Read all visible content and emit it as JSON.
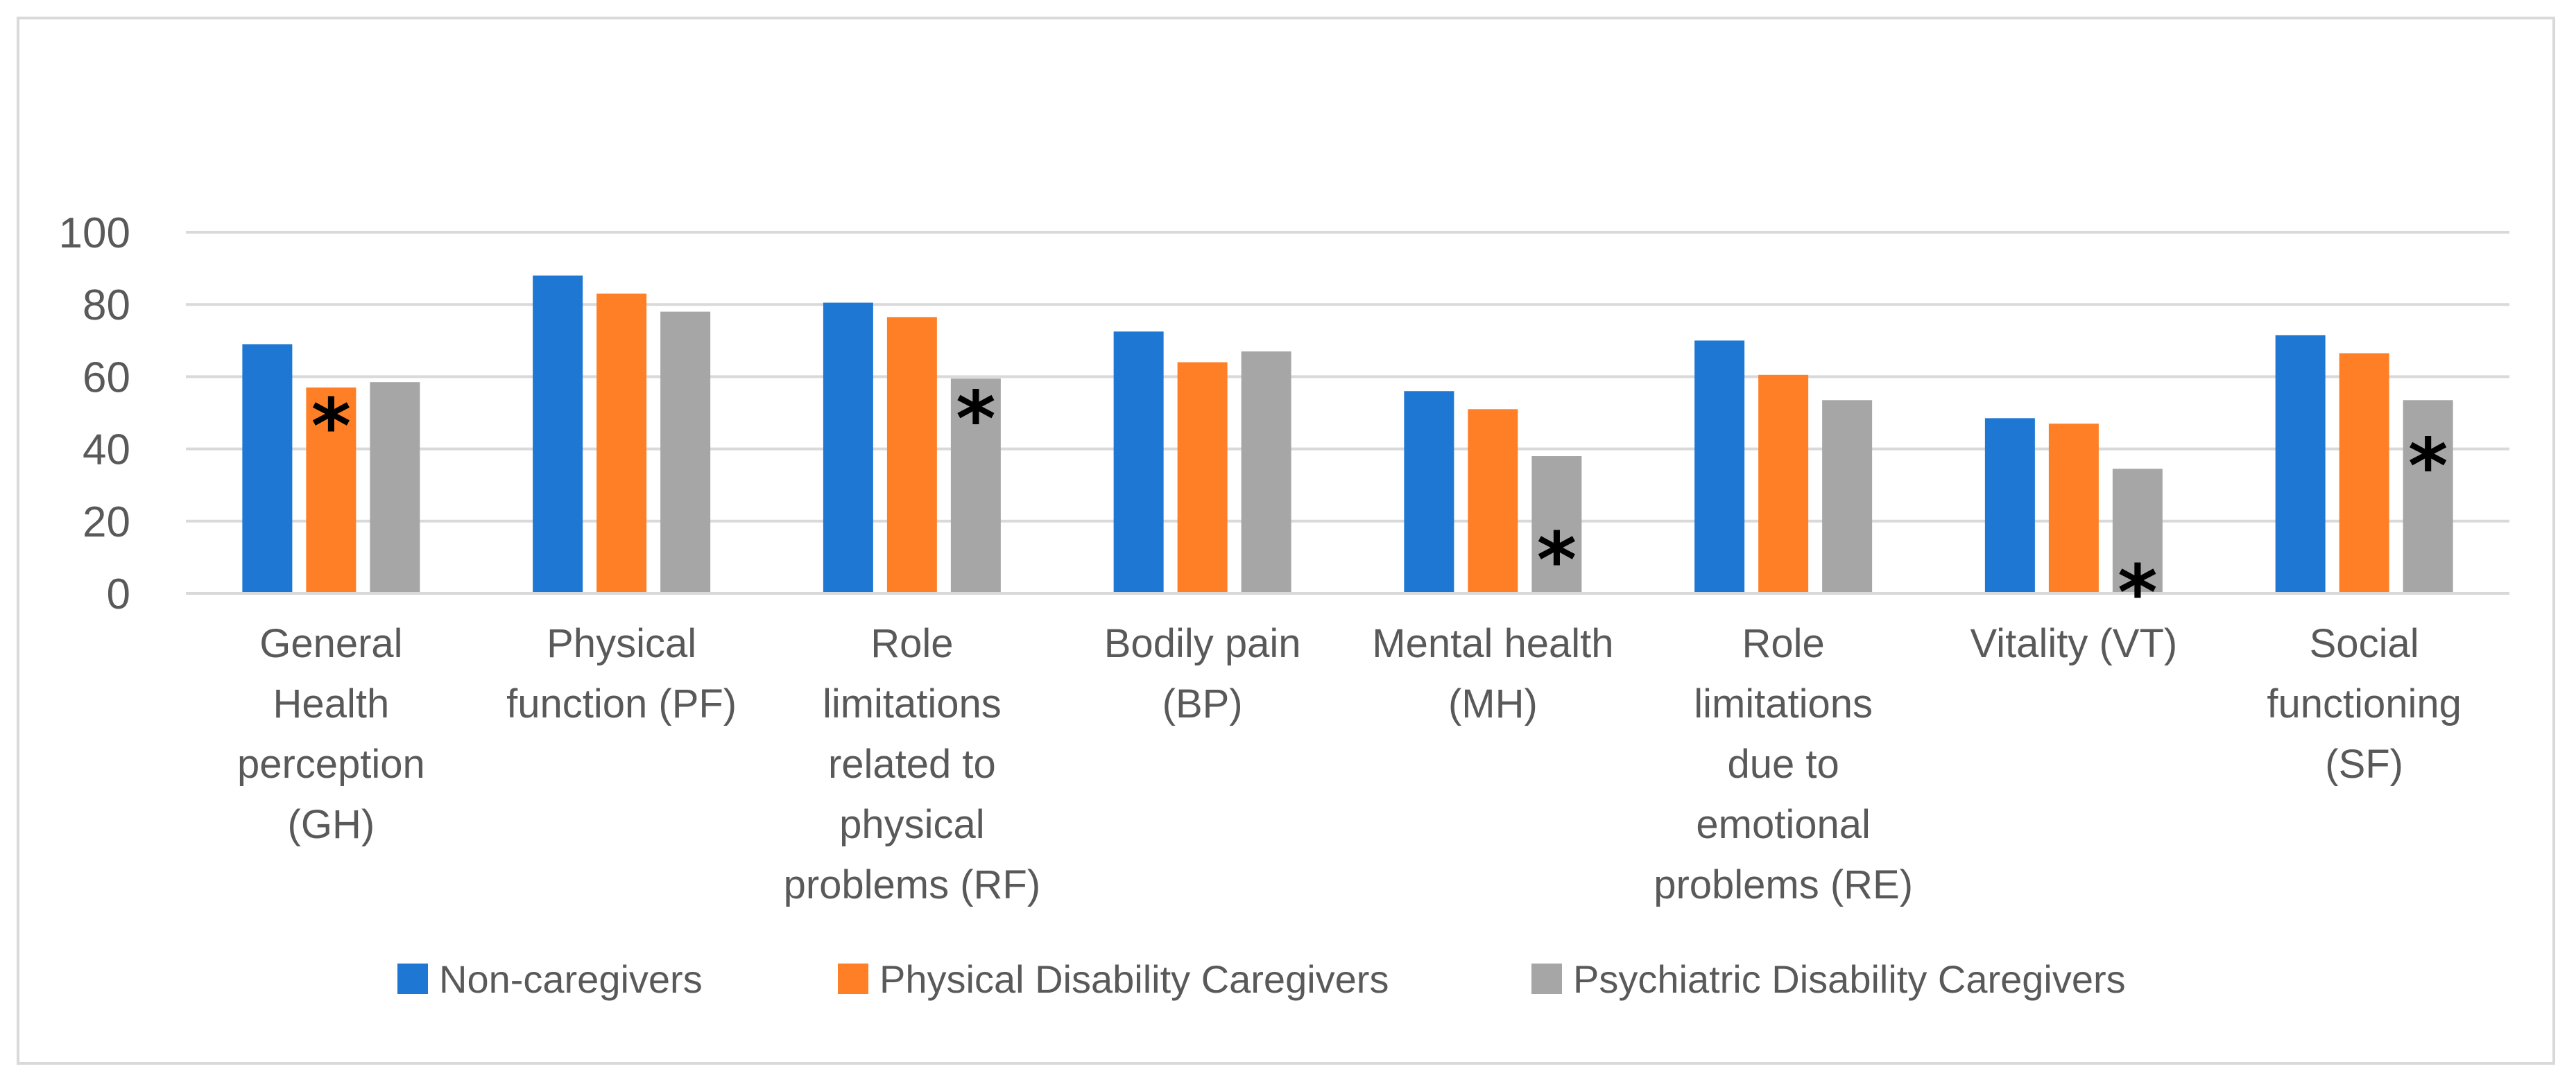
{
  "chart_data": {
    "type": "bar",
    "title": "",
    "xlabel": "",
    "ylabel": "",
    "ylim": [
      0,
      100
    ],
    "yticks": [
      0,
      20,
      40,
      60,
      80,
      100
    ],
    "grid": true,
    "legend_position": "bottom",
    "categories": [
      [
        "General",
        "Health",
        "perception",
        "(GH)"
      ],
      [
        "Physical",
        "function (PF)"
      ],
      [
        "Role",
        "limitations",
        "related to",
        "physical",
        "problems (RF)"
      ],
      [
        "Bodily pain",
        "(BP)"
      ],
      [
        "Mental health",
        "(MH)"
      ],
      [
        "Role",
        "limitations",
        "due to",
        "emotional",
        "problems (RE)"
      ],
      [
        "Vitality (VT)"
      ],
      [
        "Social",
        "functioning",
        "(SF)"
      ]
    ],
    "series": [
      {
        "name": "Non-caregivers",
        "color": "#1f77d4",
        "values": [
          69,
          88,
          80.5,
          72.5,
          56,
          70,
          48.5,
          71.5
        ]
      },
      {
        "name": "Physical Disability Caregivers",
        "color": "#ff7f27",
        "values": [
          57,
          83,
          76.5,
          64,
          51,
          60.5,
          47,
          66.5
        ]
      },
      {
        "name": "Psychiatric Disability Caregivers",
        "color": "#a6a6a6",
        "values": [
          58.5,
          78,
          59.5,
          67,
          38,
          53.5,
          34.5,
          53.5
        ]
      }
    ],
    "annotations": [
      {
        "text": "*",
        "category_index": 0,
        "series_index": 1,
        "value": 47
      },
      {
        "text": "*",
        "category_index": 2,
        "series_index": 2,
        "value": 49
      },
      {
        "text": "*",
        "category_index": 4,
        "series_index": 2,
        "value": 10
      },
      {
        "text": "*",
        "category_index": 6,
        "series_index": 2,
        "value": 1
      },
      {
        "text": "*",
        "category_index": 7,
        "series_index": 2,
        "value": 36
      }
    ]
  }
}
